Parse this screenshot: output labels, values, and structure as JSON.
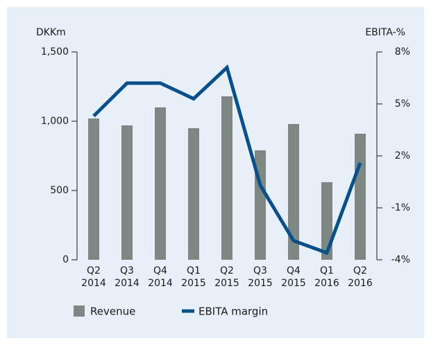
{
  "chart_data": {
    "type": "bar_line",
    "y_axis_label": "DKKm",
    "y2_axis_label": "EBITA-%",
    "categories": [
      "Q2 2014",
      "Q3 2014",
      "Q4 2014",
      "Q1 2015",
      "Q2 2015",
      "Q3 2015",
      "Q4 2015",
      "Q1 2016",
      "Q2 2016"
    ],
    "series": [
      {
        "name": "Revenue",
        "color": "#7d8884",
        "type": "bar",
        "values": [
          1020,
          970,
          1100,
          950,
          1180,
          790,
          980,
          560,
          910
        ]
      },
      {
        "name": "EBITA margin",
        "color": "#0b4f8a",
        "type": "line",
        "axis": "y2",
        "values": [
          4.3,
          6.2,
          6.2,
          5.3,
          7.1,
          0.3,
          -2.9,
          -3.6,
          1.6
        ]
      }
    ],
    "ylim": [
      0,
      1500
    ],
    "yticks": [
      0,
      500,
      {
        "value": 1000,
        "label": "1,000"
      },
      {
        "value": 1500,
        "label": "1,500"
      }
    ],
    "y2lim": [
      -4,
      8
    ],
    "y2ticks": [
      {
        "value": -4,
        "label": "-4%"
      },
      {
        "value": -1,
        "label": "-1%"
      },
      {
        "value": 2,
        "label": "2%"
      },
      {
        "value": 5,
        "label": "5%"
      },
      {
        "value": 8,
        "label": "8%"
      }
    ]
  }
}
